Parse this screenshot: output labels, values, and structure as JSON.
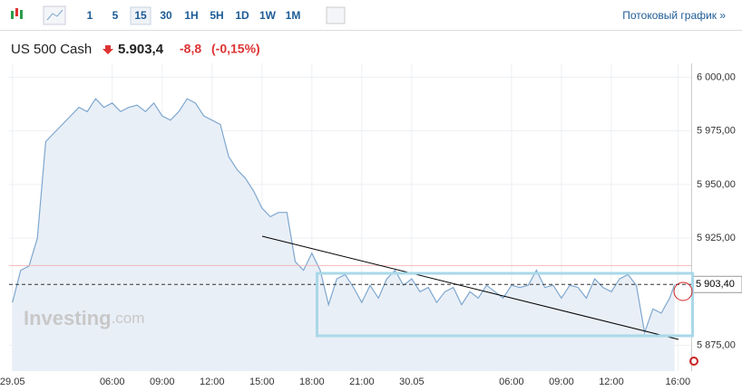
{
  "toolbar": {
    "intervals": [
      "1",
      "5",
      "15",
      "30",
      "1H",
      "5H",
      "1D",
      "1W",
      "1M"
    ],
    "active": "15",
    "link": "Потоковый график »"
  },
  "quote": {
    "name": "US 500 Cash",
    "price": "5.903,4",
    "change": "-8,8",
    "change_pct": "(-0,15%)"
  },
  "watermark": {
    "brand": "Investing",
    "suffix": ".com"
  },
  "chart_data": {
    "type": "area",
    "x": [
      0,
      0.5,
      1,
      1.5,
      2,
      2.5,
      3,
      3.5,
      4,
      4.5,
      5,
      5.5,
      6,
      6.5,
      7,
      7.5,
      8,
      8.5,
      9,
      9.5,
      10,
      10.5,
      11,
      11.5,
      12,
      12.5,
      13,
      13.5,
      14,
      14.5,
      15,
      15.5,
      16,
      16.5,
      17,
      17.5,
      18,
      18.5,
      19,
      19.5,
      20,
      20.5,
      21,
      21.5,
      22,
      22.5,
      23,
      23.5,
      24,
      24.5,
      25,
      25.5,
      26,
      26.5,
      27,
      27.5,
      28,
      28.5,
      29,
      29.5,
      30,
      30.5,
      31,
      31.5,
      32,
      32.5,
      33,
      33.5,
      34,
      34.5,
      35,
      35.5,
      36,
      36.5,
      37,
      37.5,
      38,
      38.5,
      39,
      39.5,
      39.8
    ],
    "values": [
      5895,
      5910,
      5912,
      5925,
      5970,
      5974,
      5978,
      5982,
      5986,
      5984,
      5990,
      5986,
      5988,
      5984,
      5986,
      5987,
      5984,
      5988,
      5982,
      5980,
      5984,
      5990,
      5988,
      5982,
      5980,
      5978,
      5963,
      5957,
      5953,
      5947,
      5939,
      5935,
      5937,
      5937,
      5914,
      5910,
      5918,
      5910,
      5894,
      5906,
      5908,
      5902,
      5895,
      5903,
      5897,
      5906,
      5910,
      5903,
      5906,
      5900,
      5902,
      5895,
      5900,
      5902,
      5894,
      5900,
      5897,
      5903,
      5900,
      5897,
      5903,
      5902,
      5903,
      5910,
      5902,
      5903,
      5897,
      5903,
      5902,
      5897,
      5906,
      5902,
      5900,
      5906,
      5908,
      5903,
      5881,
      5892,
      5890,
      5897,
      5903.4
    ],
    "color": "#7ea7cf",
    "xlim": [
      -0.2,
      40.8
    ],
    "xticks": [
      {
        "value": 0,
        "label": "29.05"
      },
      {
        "value": 6,
        "label": "06:00"
      },
      {
        "value": 9,
        "label": "09:00"
      },
      {
        "value": 12,
        "label": "12:00"
      },
      {
        "value": 15,
        "label": "15:00"
      },
      {
        "value": 18,
        "label": "18:00"
      },
      {
        "value": 21,
        "label": "21:00"
      },
      {
        "value": 24,
        "label": "30.05"
      },
      {
        "value": 30,
        "label": "06:00"
      },
      {
        "value": 33,
        "label": "09:00"
      },
      {
        "value": 36,
        "label": "12:00"
      },
      {
        "value": 40,
        "label": "16:00"
      }
    ],
    "ylim": [
      5863,
      6006.5
    ],
    "yticks": [
      {
        "value": 6000,
        "label": "6 000,00"
      },
      {
        "value": 5975,
        "label": "5 975,00"
      },
      {
        "value": 5950,
        "label": "5 950,00"
      },
      {
        "value": 5925,
        "label": "5 925,00"
      },
      {
        "value": 5875,
        "label": "5 875,00"
      }
    ],
    "last": {
      "value": 5903.4,
      "label": "5 903,40"
    },
    "reference_line": 5912.2,
    "grid": true
  }
}
